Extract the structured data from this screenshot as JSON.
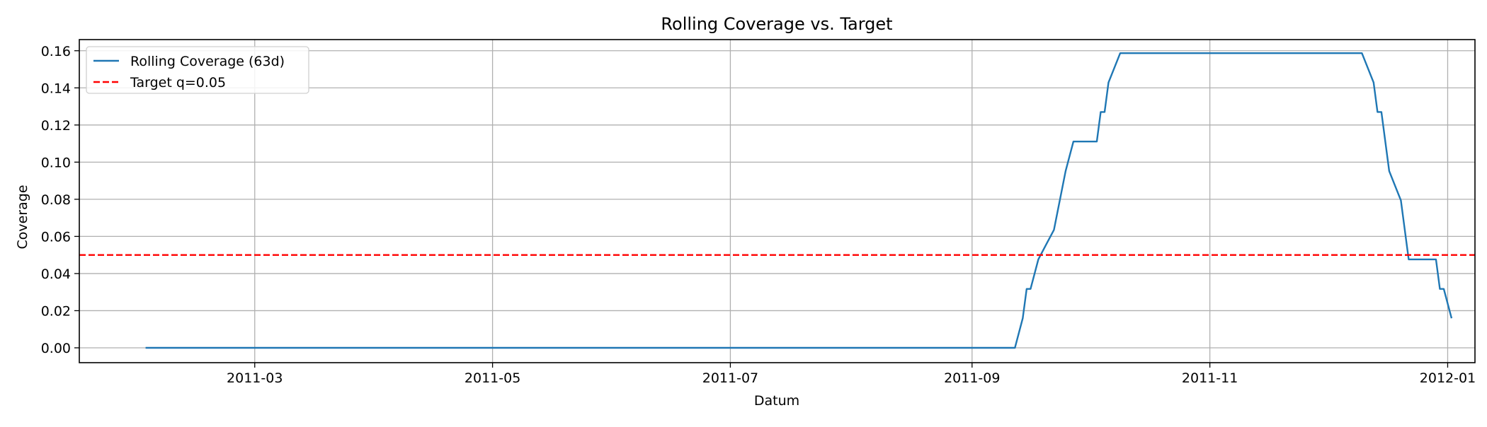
{
  "chart_data": {
    "type": "line",
    "title": "Rolling Coverage vs. Target",
    "xlabel": "Datum",
    "ylabel": "Coverage",
    "xlim": [
      "2011-01-15",
      "2012-01-08"
    ],
    "ylim": [
      -0.008,
      0.166
    ],
    "x_ticks": [
      "2011-03-01",
      "2011-05-01",
      "2011-07-01",
      "2011-09-01",
      "2011-11-01",
      "2012-01-01"
    ],
    "x_tick_labels": [
      "2011-03",
      "2011-05",
      "2011-07",
      "2011-09",
      "2011-11",
      "2012-01"
    ],
    "y_ticks": [
      0.0,
      0.02,
      0.04,
      0.06,
      0.08,
      0.1,
      0.12,
      0.14,
      0.16
    ],
    "y_tick_labels": [
      "0.00",
      "0.02",
      "0.04",
      "0.06",
      "0.08",
      "0.10",
      "0.12",
      "0.14",
      "0.16"
    ],
    "grid": true,
    "legend_position": "top-left",
    "series": [
      {
        "name": "Rolling Coverage (63d)",
        "color": "#1f77b4",
        "style": "solid",
        "points": [
          [
            "2011-02-01",
            0.0
          ],
          [
            "2011-09-12",
            0.0
          ],
          [
            "2011-09-14",
            0.0159
          ],
          [
            "2011-09-15",
            0.0317
          ],
          [
            "2011-09-16",
            0.0317
          ],
          [
            "2011-09-18",
            0.0476
          ],
          [
            "2011-09-20",
            0.0556
          ],
          [
            "2011-09-22",
            0.0635
          ],
          [
            "2011-09-25",
            0.0952
          ],
          [
            "2011-09-27",
            0.1111
          ],
          [
            "2011-10-03",
            0.1111
          ],
          [
            "2011-10-04",
            0.127
          ],
          [
            "2011-10-05",
            0.127
          ],
          [
            "2011-10-06",
            0.1429
          ],
          [
            "2011-10-09",
            0.1587
          ],
          [
            "2011-12-10",
            0.1587
          ],
          [
            "2011-12-13",
            0.1429
          ],
          [
            "2011-12-14",
            0.127
          ],
          [
            "2011-12-15",
            0.127
          ],
          [
            "2011-12-17",
            0.0952
          ],
          [
            "2011-12-20",
            0.0794
          ],
          [
            "2011-12-22",
            0.0476
          ],
          [
            "2011-12-29",
            0.0476
          ],
          [
            "2011-12-30",
            0.0317
          ],
          [
            "2011-12-31",
            0.0317
          ],
          [
            "2012-01-02",
            0.0159
          ]
        ]
      },
      {
        "name": "Target q=0.05",
        "color": "#ff0000",
        "style": "dashed",
        "value": 0.05
      }
    ]
  }
}
